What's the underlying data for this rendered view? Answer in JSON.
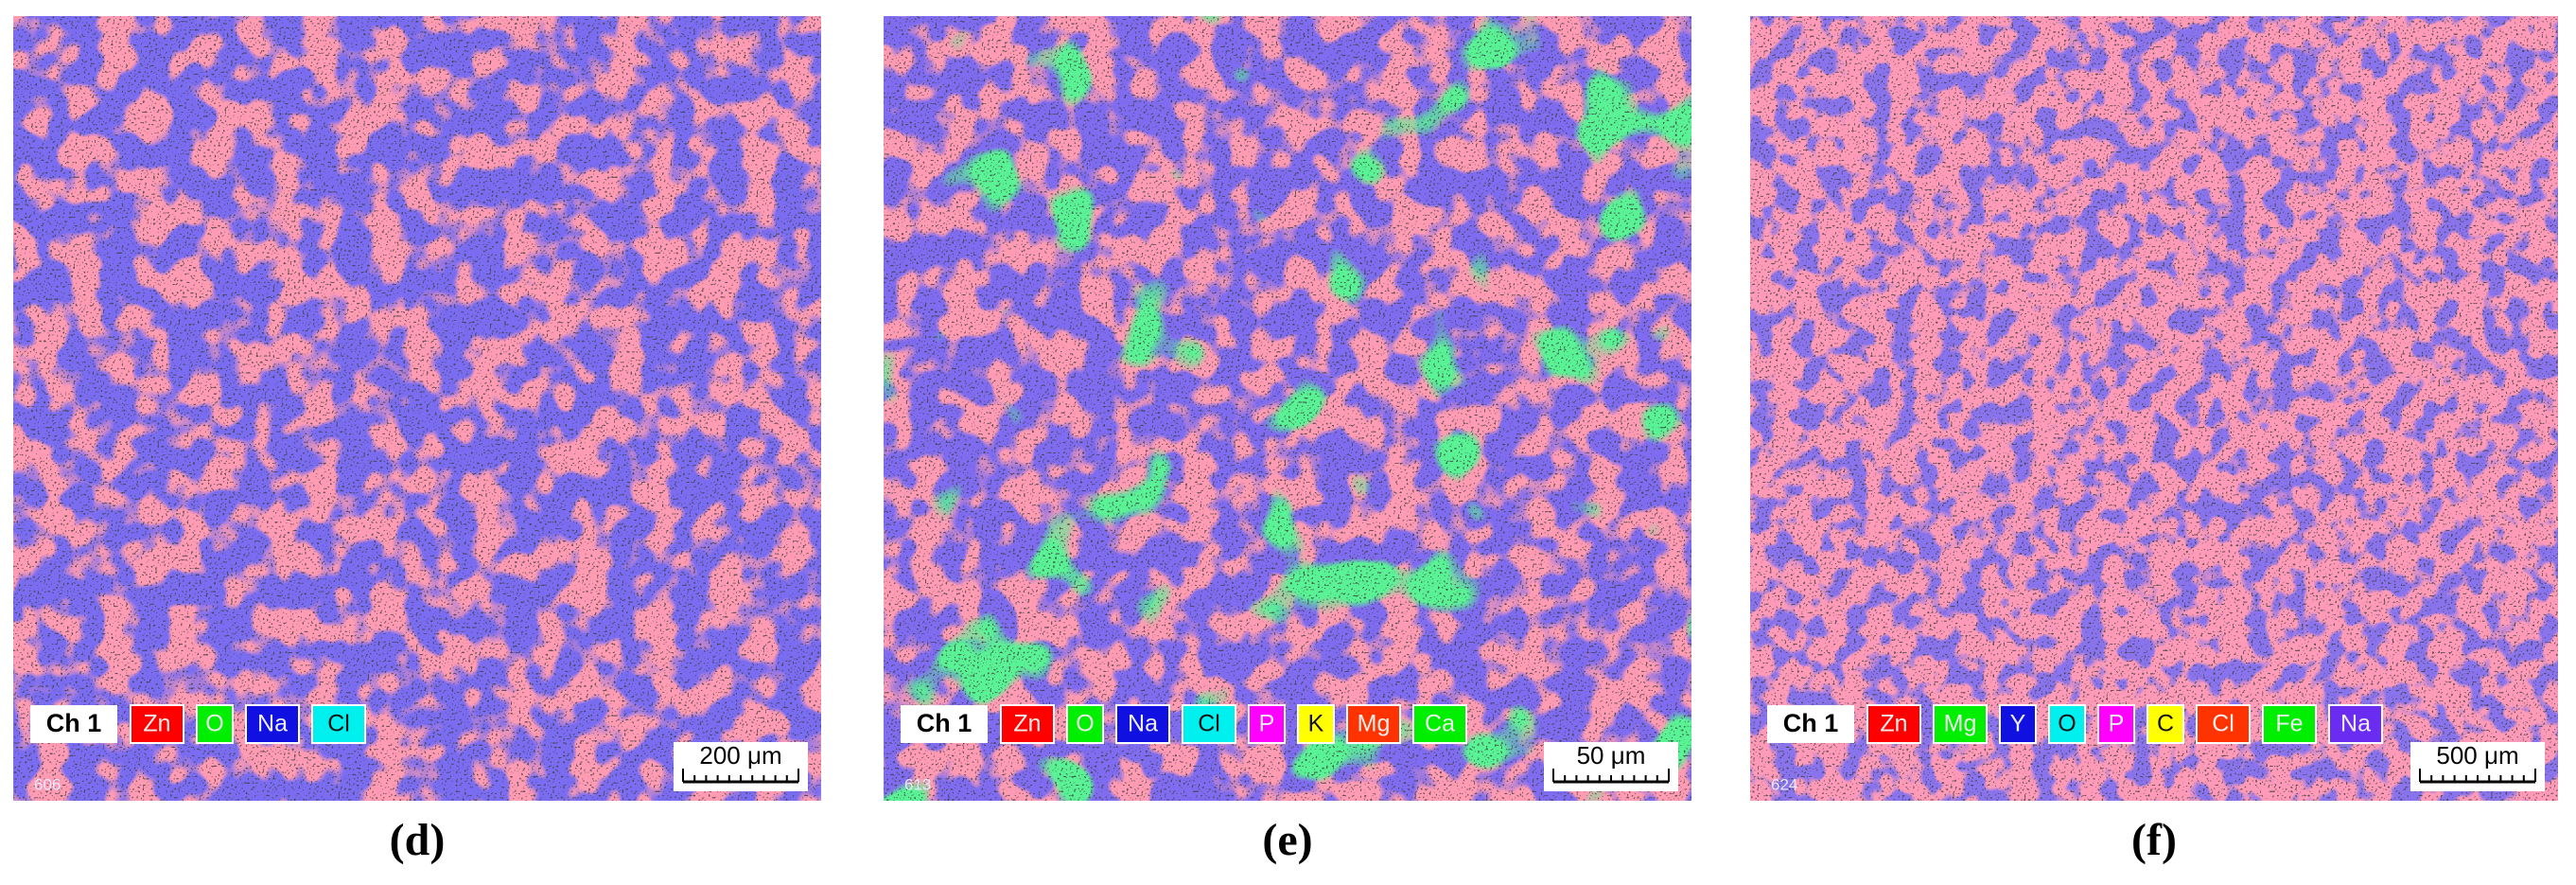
{
  "panels": [
    {
      "caption": "(d)",
      "image_id": "606",
      "channel": "Ch 1",
      "scale_bar": "200 μm",
      "legend": [
        {
          "label": "Zn",
          "color": "#ff0000"
        },
        {
          "label": "O",
          "color": "#00ee00"
        },
        {
          "label": "Na",
          "color": "#1010e0"
        },
        {
          "label": "Cl",
          "color": "#00f0f0"
        }
      ]
    },
    {
      "caption": "(e)",
      "image_id": "613",
      "channel": "Ch 1",
      "scale_bar": "50 μm",
      "legend": [
        {
          "label": "Zn",
          "color": "#ff0000"
        },
        {
          "label": "O",
          "color": "#00ee00"
        },
        {
          "label": "Na",
          "color": "#1010e0"
        },
        {
          "label": "Cl",
          "color": "#00f0f0"
        },
        {
          "label": "P",
          "color": "#ff00ff"
        },
        {
          "label": "K",
          "color": "#ffff00"
        },
        {
          "label": "Mg",
          "color": "#ff3300"
        },
        {
          "label": "Ca",
          "color": "#00ee00"
        }
      ]
    },
    {
      "caption": "(f)",
      "image_id": "624",
      "channel": "Ch 1",
      "scale_bar": "500 μm",
      "legend": [
        {
          "label": "Zn",
          "color": "#ff0000"
        },
        {
          "label": "Mg",
          "color": "#00ee00"
        },
        {
          "label": "Y",
          "color": "#1010e0"
        },
        {
          "label": "O",
          "color": "#00f0f0"
        },
        {
          "label": "P",
          "color": "#ff00ff"
        },
        {
          "label": "C",
          "color": "#ffff00"
        },
        {
          "label": "Cl",
          "color": "#ff3300"
        },
        {
          "label": "Fe",
          "color": "#00ee00"
        },
        {
          "label": "Na",
          "color": "#6a2cf0"
        }
      ]
    }
  ]
}
